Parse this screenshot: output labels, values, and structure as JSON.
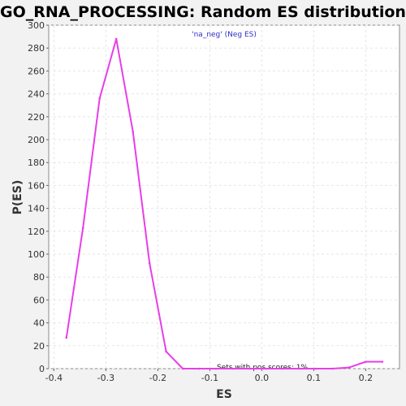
{
  "chart_data": {
    "type": "line",
    "title": "GO_RNA_PROCESSING: Random ES distribution",
    "subtitle": "'na_neg' (Neg ES)",
    "xlabel": "ES",
    "ylabel": "P(ES)",
    "xlim": [
      -0.41,
      0.265
    ],
    "ylim": [
      0,
      300
    ],
    "xticks": [
      -0.4,
      -0.3,
      -0.2,
      -0.1,
      0.0,
      0.1,
      0.2
    ],
    "xtick_labels": [
      "-0.4",
      "-0.3",
      "-0.2",
      "-0.1",
      "0.0",
      "0.1",
      "0.2"
    ],
    "yticks": [
      0,
      20,
      40,
      60,
      80,
      100,
      120,
      140,
      160,
      180,
      200,
      220,
      240,
      260,
      280,
      300
    ],
    "grid": true,
    "line_color": "#e83ee8",
    "annotation": "Sets with pos scores: 1%",
    "series": [
      {
        "x": [
          -0.376,
          -0.344,
          -0.312,
          -0.28,
          -0.248,
          -0.216,
          -0.184,
          -0.152,
          -0.12,
          -0.088,
          -0.056,
          -0.024,
          0.008,
          0.04,
          0.072,
          0.104,
          0.136,
          0.168,
          0.2,
          0.232
        ],
        "y": [
          27,
          123,
          236,
          288,
          207,
          92,
          15,
          0,
          0,
          0,
          0,
          0,
          0,
          0,
          0,
          0,
          0,
          1,
          6,
          6
        ]
      }
    ]
  }
}
